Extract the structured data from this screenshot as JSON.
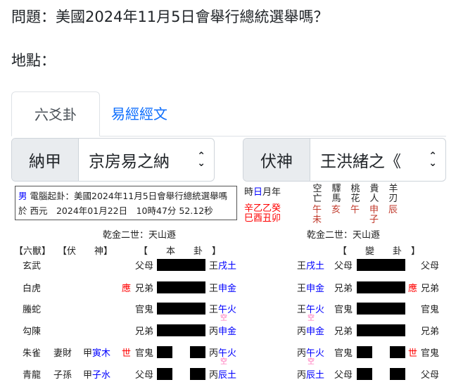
{
  "question": "問題：美國2024年11月5日會舉行總統選舉嗎？",
  "location": "地點：",
  "tabs": [
    {
      "label": "六爻卦",
      "active": true
    },
    {
      "label": "易經經文",
      "active": false
    }
  ],
  "selects": [
    {
      "label": "納甲",
      "value": "京房易之納"
    },
    {
      "label": "伏神",
      "value": "王洪緒之《"
    }
  ],
  "info": {
    "gender": "男",
    "line1": "電腦起卦：美國2024年11月5日會舉行總統選舉嗎",
    "line2": "於 西元　2024年01月22日　10時47分 52.12秒"
  },
  "pillars": {
    "labels": [
      "時",
      "日",
      "月",
      "年"
    ],
    "stems": "辛乙乙癸",
    "branches": "巳酉丑卯"
  },
  "shensha": [
    {
      "name": "空亡",
      "values": [
        "午",
        "未"
      ]
    },
    {
      "name": "驛馬",
      "values": [
        "亥"
      ]
    },
    {
      "name": "桃花",
      "values": [
        "午"
      ]
    },
    {
      "name": "貴人",
      "values": [
        "申",
        "子"
      ]
    },
    {
      "name": "羊刃",
      "values": [
        "辰"
      ]
    }
  ],
  "gua_name_left": "乾金二世：天山遯",
  "gua_name_right": "乾金二世：天山遯",
  "headers": {
    "beast": "【六獸】",
    "fu": "【伏　　神】",
    "ben": "【　　本　　卦　】",
    "bian": "【　　變　　卦　】"
  },
  "rows": [
    {
      "beast": "玄武",
      "fu_rel": "",
      "fu_stem": "",
      "fu_branch": "",
      "mark": "",
      "rel": "父母",
      "line": "yang",
      "stem": "王",
      "branch": "戌土",
      "kong": "",
      "bian_stem": "王",
      "bian_branch": "戌土",
      "bian_kong": "",
      "bian_rel": "父母",
      "bian_line": "yang",
      "bian_mark": "",
      "bian_rel2": "父母"
    },
    {
      "beast": "白虎",
      "fu_rel": "",
      "fu_stem": "",
      "fu_branch": "",
      "mark": "應",
      "rel": "兄弟",
      "line": "yang",
      "stem": "王",
      "branch": "申金",
      "kong": "",
      "bian_stem": "王",
      "bian_branch": "申金",
      "bian_kong": "",
      "bian_rel": "兄弟",
      "bian_line": "yang",
      "bian_mark": "應",
      "bian_rel2": "兄弟"
    },
    {
      "beast": "螣蛇",
      "fu_rel": "",
      "fu_stem": "",
      "fu_branch": "",
      "mark": "",
      "rel": "官鬼",
      "line": "yang",
      "stem": "王",
      "branch": "午火",
      "kong": "空",
      "bian_stem": "王",
      "bian_branch": "午火",
      "bian_kong": "空",
      "bian_rel": "官鬼",
      "bian_line": "yang",
      "bian_mark": "",
      "bian_rel2": "官鬼"
    },
    {
      "beast": "勾陳",
      "fu_rel": "",
      "fu_stem": "",
      "fu_branch": "",
      "mark": "",
      "rel": "兄弟",
      "line": "yang",
      "stem": "丙",
      "branch": "申金",
      "kong": "",
      "bian_stem": "丙",
      "bian_branch": "申金",
      "bian_kong": "",
      "bian_rel": "兄弟",
      "bian_line": "yang",
      "bian_mark": "",
      "bian_rel2": "兄弟"
    },
    {
      "beast": "朱雀",
      "fu_rel": "妻財",
      "fu_stem": "甲",
      "fu_branch": "寅木",
      "mark": "世",
      "rel": "官鬼",
      "line": "yin",
      "stem": "丙",
      "branch": "午火",
      "kong": "空",
      "bian_stem": "丙",
      "bian_branch": "午火",
      "bian_kong": "空",
      "bian_rel": "官鬼",
      "bian_line": "yin",
      "bian_mark": "世",
      "bian_rel2": "官鬼"
    },
    {
      "beast": "青龍",
      "fu_rel": "子孫",
      "fu_stem": "甲",
      "fu_branch": "子水",
      "mark": "",
      "rel": "父母",
      "line": "yin",
      "stem": "丙",
      "branch": "辰土",
      "kong": "",
      "bian_stem": "丙",
      "bian_branch": "辰土",
      "bian_kong": "",
      "bian_rel": "父母",
      "bian_line": "yin",
      "bian_mark": "",
      "bian_rel2": "父母"
    }
  ]
}
